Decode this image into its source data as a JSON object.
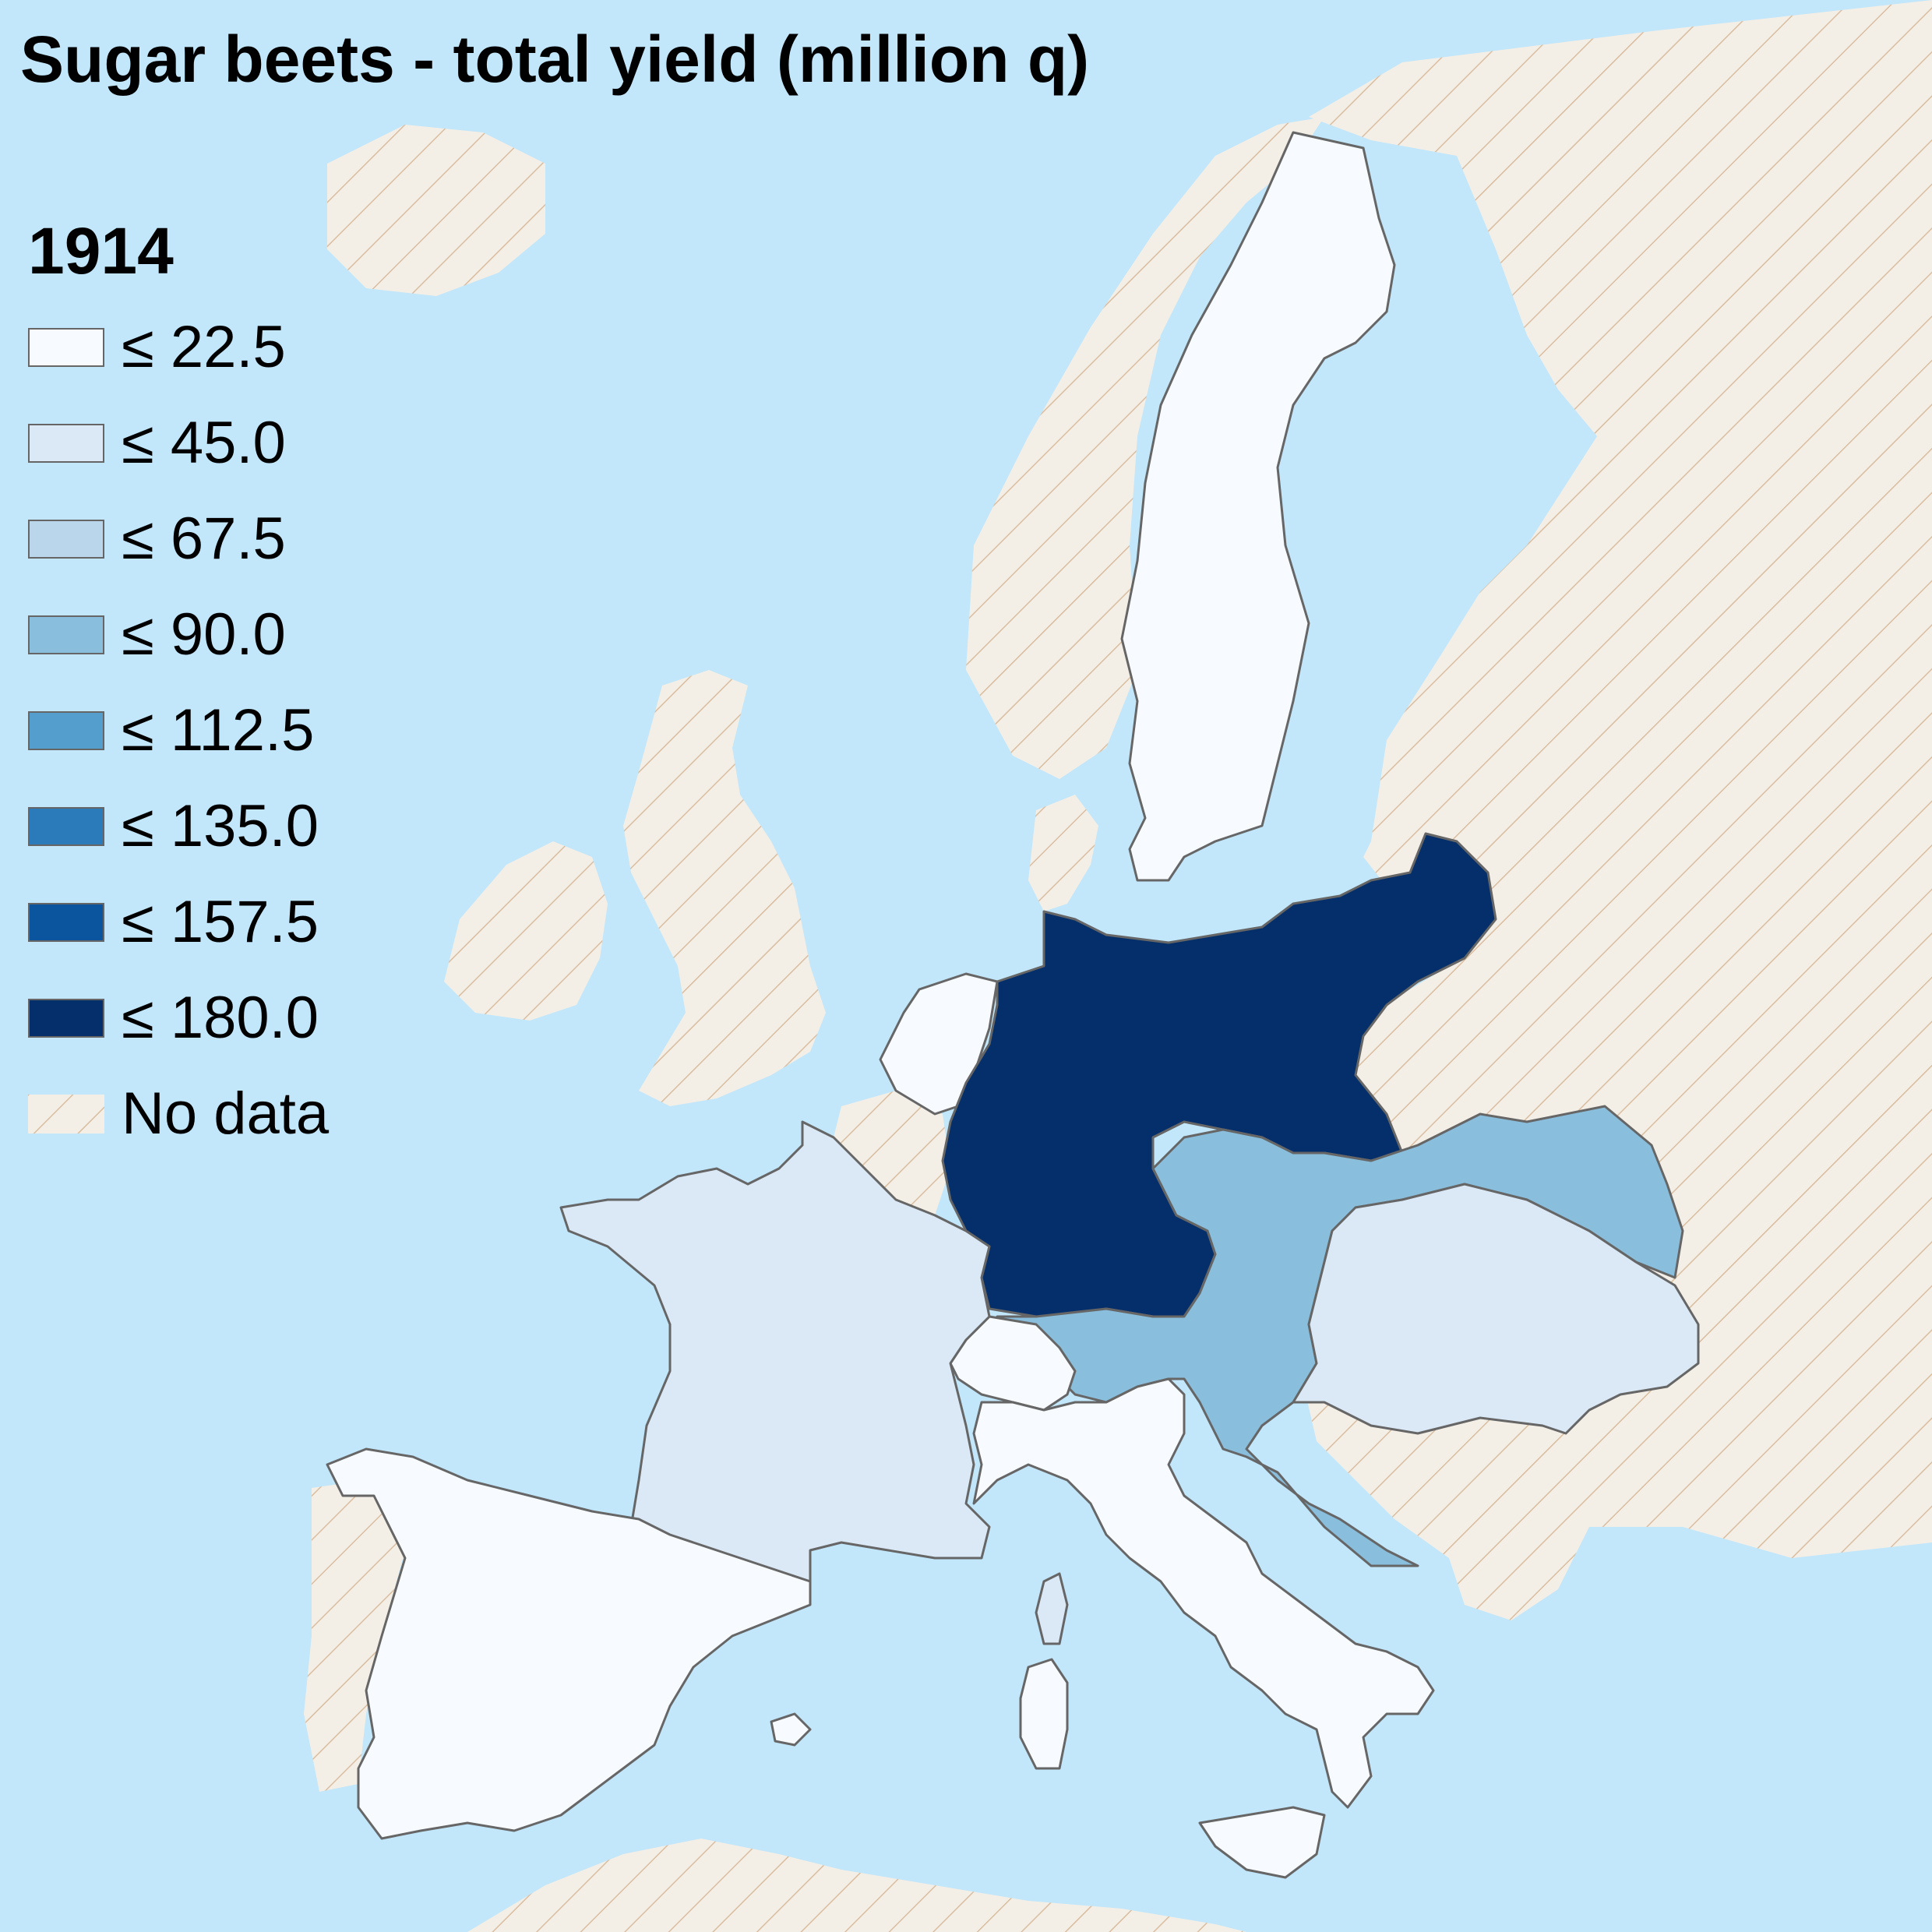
{
  "title": "Sugar beets - total yield (million q)",
  "legend": {
    "year": "1914",
    "items": [
      {
        "label": "≤ 22.5",
        "color": "#f7fbff"
      },
      {
        "label": "≤ 45.0",
        "color": "#dbe9f6"
      },
      {
        "label": "≤ 67.5",
        "color": "#bad6eb"
      },
      {
        "label": "≤ 90.0",
        "color": "#89bedc"
      },
      {
        "label": "≤ 112.5",
        "color": "#539ecd"
      },
      {
        "label": "≤ 135.0",
        "color": "#2b7bba"
      },
      {
        "label": "≤ 157.5",
        "color": "#0b559f"
      },
      {
        "label": "≤ 180.0",
        "color": "#052f6a"
      },
      {
        "label": "No data",
        "color": "#f4efe6"
      }
    ]
  },
  "colors": {
    "sea": "#c2e6fa",
    "no_data_fill": "#f4efe6",
    "no_data_hatch": "#d9bda0",
    "border": "#666666"
  },
  "regions": [
    {
      "name": "Germany",
      "class": "≤ 180.0"
    },
    {
      "name": "Austria-Hungary",
      "class": "≤ 90.0"
    },
    {
      "name": "France",
      "class": "≤ 45.0"
    },
    {
      "name": "Hungary",
      "class": "≤ 45.0"
    },
    {
      "name": "Corsica",
      "class": "≤ 45.0"
    },
    {
      "name": "Netherlands",
      "class": "≤ 22.5"
    },
    {
      "name": "Switzerland",
      "class": "≤ 22.5"
    },
    {
      "name": "Italy",
      "class": "≤ 22.5"
    },
    {
      "name": "Spain",
      "class": "≤ 22.5"
    },
    {
      "name": "Sweden",
      "class": "≤ 22.5"
    }
  ]
}
